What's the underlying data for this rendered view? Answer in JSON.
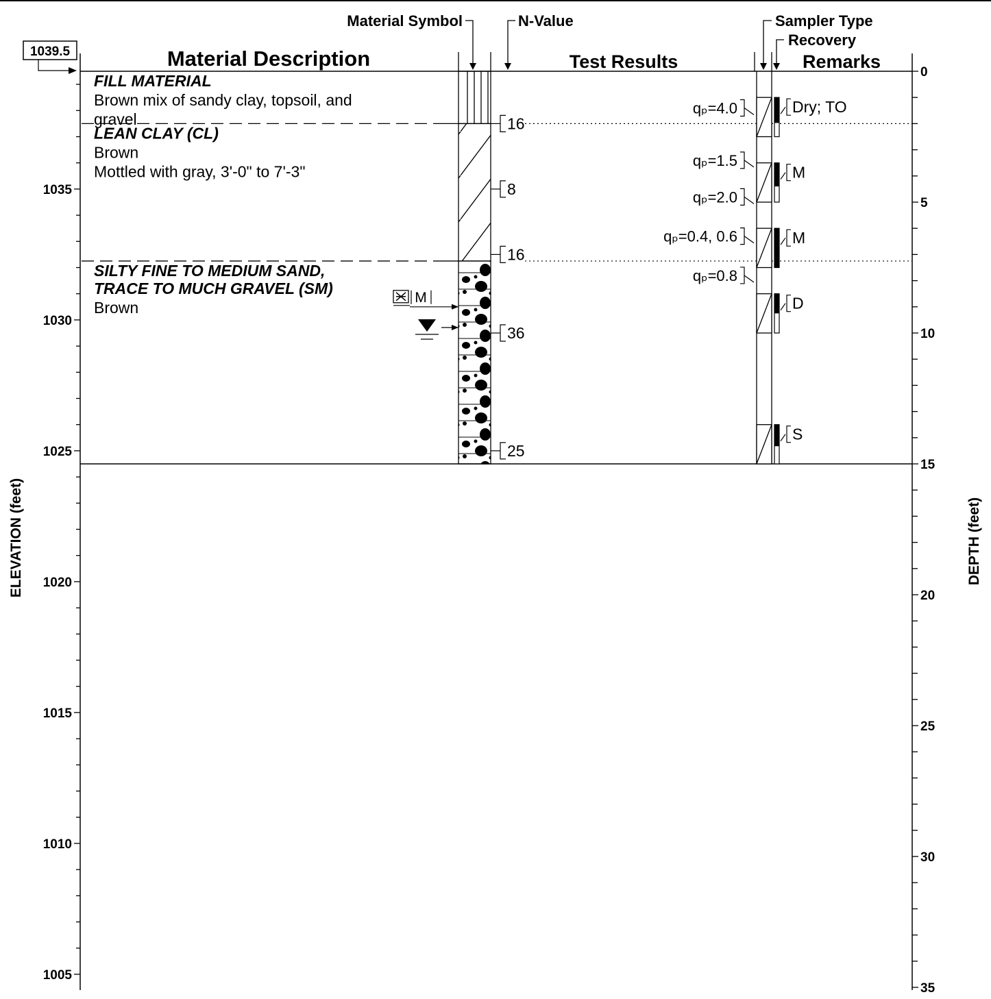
{
  "headers": {
    "material_symbol": "Material Symbol",
    "n_value": "N-Value",
    "sampler_type": "Sampler Type",
    "recovery": "Recovery",
    "material_description": "Material Description",
    "test_results": "Test Results",
    "remarks": "Remarks"
  },
  "surface_elevation": "1039.5",
  "axes": {
    "elevation_label": "ELEVATION  (feet)",
    "depth_label": "DEPTH (feet)",
    "elevation_ticks": [
      "1035",
      "1030",
      "1025",
      "1020",
      "1015",
      "1010",
      "1005"
    ],
    "depth_ticks": [
      "0",
      "5",
      "10",
      "15",
      "20",
      "25",
      "30",
      "35"
    ]
  },
  "strata": [
    {
      "name": "FILL MATERIAL",
      "lines": [
        "Brown mix of sandy clay, topsoil, and",
        "gravel"
      ],
      "top_depth_ft": 0,
      "bottom_depth_ft": 2.0,
      "symbol": "fill-pattern"
    },
    {
      "name": "LEAN CLAY (CL)",
      "lines": [
        "Brown",
        "Mottled with gray, 3'-0\" to 7'-3\""
      ],
      "top_depth_ft": 2.0,
      "bottom_depth_ft": 7.25,
      "symbol": "clay-hatch-pattern"
    },
    {
      "name": "SILTY FINE TO MEDIUM SAND,",
      "name2": "TRACE TO MUCH GRAVEL (SM)",
      "lines": [
        "Brown"
      ],
      "top_depth_ft": 7.25,
      "bottom_depth_ft": 15.0,
      "symbol": "gravelly-sand-pattern"
    }
  ],
  "water_markers": {
    "measured_label": "M",
    "measured_depth_ft": 9.0,
    "groundwater_depth_ft": 10.0
  },
  "n_values": [
    {
      "value": "16",
      "depth_ft": 2.0
    },
    {
      "value": "8",
      "depth_ft": 4.5
    },
    {
      "value": "16",
      "depth_ft": 7.0
    },
    {
      "value": "36",
      "depth_ft": 10.0
    },
    {
      "value": "25",
      "depth_ft": 14.5
    }
  ],
  "test_results": [
    {
      "text": "qₚ=4.0",
      "depth_ft": 1.4
    },
    {
      "text": "qₚ=1.5",
      "depth_ft": 3.4
    },
    {
      "text": "qₚ=2.0",
      "depth_ft": 4.8
    },
    {
      "text": "qₚ=0.4, 0.6",
      "depth_ft": 6.3
    },
    {
      "text": "qₚ=0.8",
      "depth_ft": 7.8
    }
  ],
  "samples": [
    {
      "top_depth_ft": 1.0,
      "bottom_depth_ft": 2.5,
      "recovery_fraction": 0.65,
      "remark": "Dry; TO"
    },
    {
      "top_depth_ft": 3.5,
      "bottom_depth_ft": 5.0,
      "recovery_fraction": 0.6,
      "remark": "M"
    },
    {
      "top_depth_ft": 6.0,
      "bottom_depth_ft": 7.5,
      "recovery_fraction": 1.0,
      "remark": "M"
    },
    {
      "top_depth_ft": 8.5,
      "bottom_depth_ft": 10.0,
      "recovery_fraction": 0.5,
      "remark": "D"
    },
    {
      "top_depth_ft": 13.5,
      "bottom_depth_ft": 15.0,
      "recovery_fraction": 0.55,
      "remark": "S"
    }
  ]
}
